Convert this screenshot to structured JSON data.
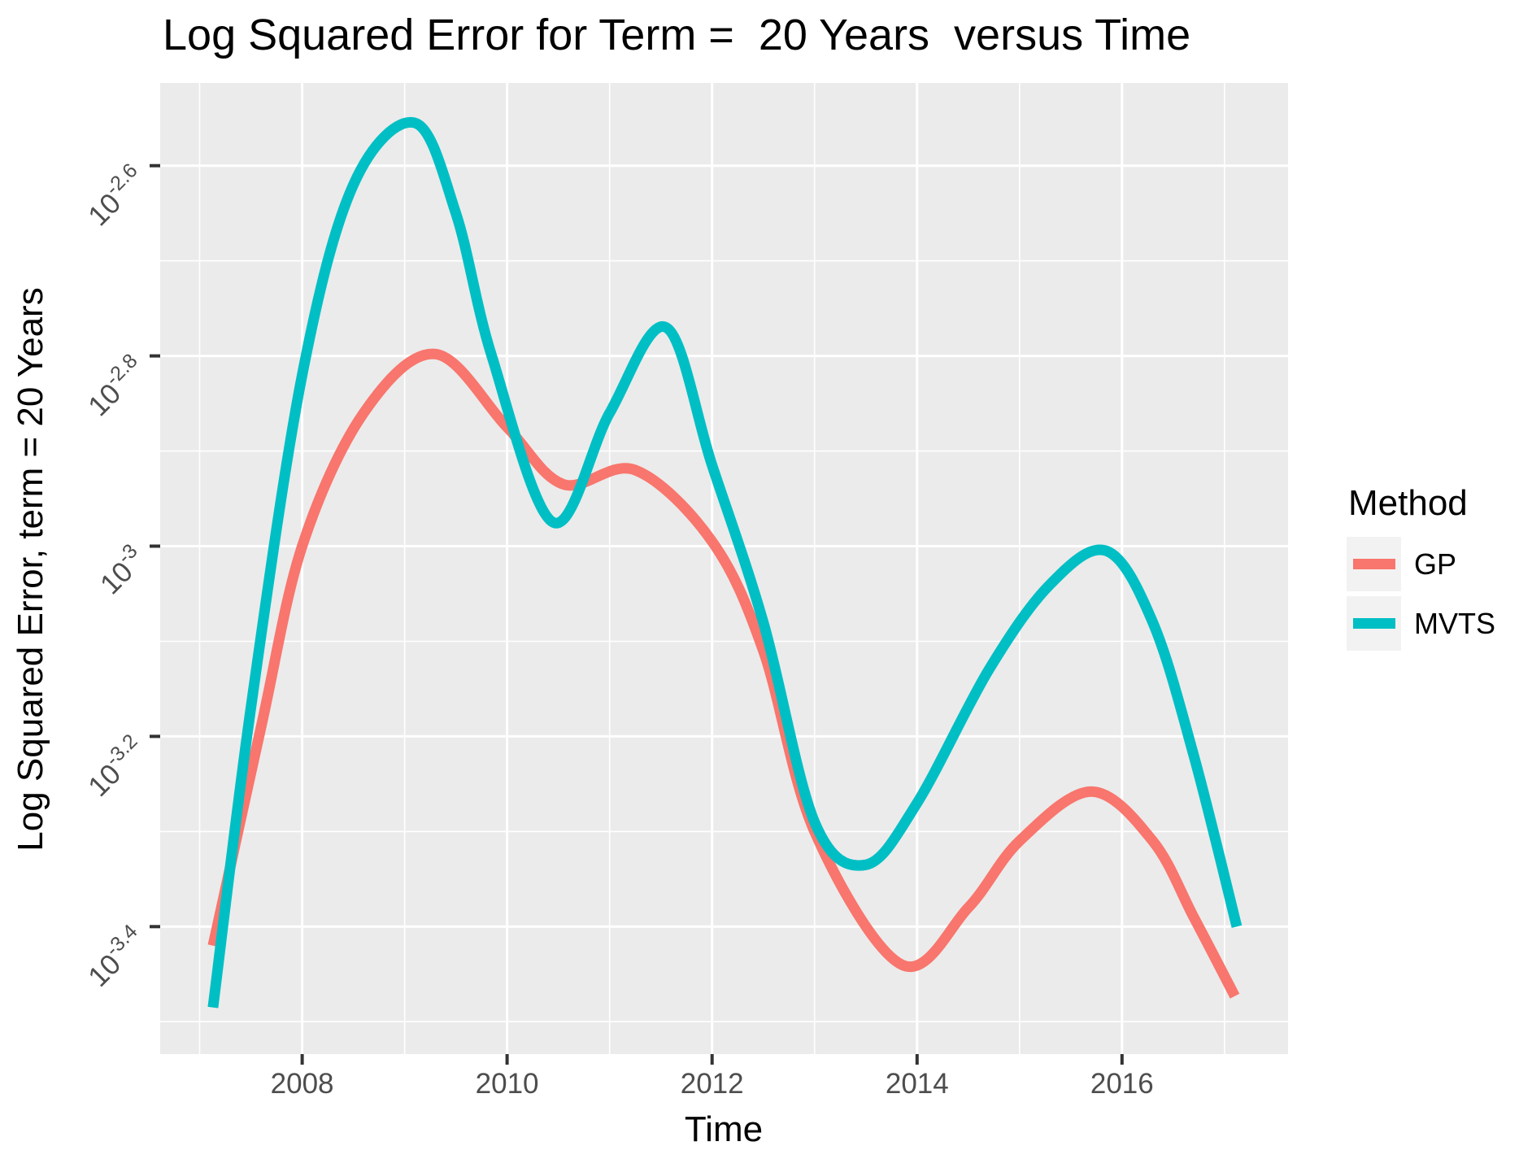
{
  "title": "Log Squared Error for Term =  20 Years  versus Time",
  "colors": {
    "panel_background": "#EBEBEB",
    "grid_line": "#FFFFFF",
    "tick_mark": "#333333",
    "tick_label": "#4D4D4D",
    "text": "#000000",
    "legend_key_background": "#F2F2F2",
    "gp_line": "#F8766D",
    "mvts_line": "#00BFC4"
  },
  "chart_data": {
    "type": "line",
    "title": "Log Squared Error for Term =  20 Years  versus Time",
    "xlabel": "Time",
    "ylabel": "Log Squared Error, term = 20 Years",
    "grid": true,
    "legend_position": "right",
    "x_domain": [
      2006.615,
      2017.62
    ],
    "y_domain_exponent": [
      -3.534,
      -2.513
    ],
    "x_major_ticks": [
      {
        "value": 2008,
        "label": "2008"
      },
      {
        "value": 2010,
        "label": "2010"
      },
      {
        "value": 2012,
        "label": "2012"
      },
      {
        "value": 2014,
        "label": "2014"
      },
      {
        "value": 2016,
        "label": "2016"
      }
    ],
    "x_minor_breaks": [
      2007,
      2009,
      2011,
      2013,
      2015,
      2017
    ],
    "y_major_ticks": [
      {
        "value": -2.6,
        "base": "10",
        "exp": "-2.6"
      },
      {
        "value": -2.8,
        "base": "10",
        "exp": "-2.8"
      },
      {
        "value": -3.0,
        "base": "10",
        "exp": "-3"
      },
      {
        "value": -3.2,
        "base": "10",
        "exp": "-3.2"
      },
      {
        "value": -3.4,
        "base": "10",
        "exp": "-3.4"
      }
    ],
    "y_minor_breaks": [
      -2.7,
      -2.9,
      -3.1,
      -3.3,
      -3.5
    ],
    "y_scale_note": "y values are log10(squared error) exponents; tick labels shown as 10^exp",
    "legend": {
      "title": "Method",
      "entries": [
        {
          "label": "GP",
          "color": "#F8766D"
        },
        {
          "label": "MVTS",
          "color": "#00BFC4"
        }
      ]
    },
    "series": [
      {
        "name": "GP",
        "color": "#F8766D",
        "points": [
          [
            2007.13,
            -3.42
          ],
          [
            2007.6,
            -3.19
          ],
          [
            2008.0,
            -3.0
          ],
          [
            2008.6,
            -2.86
          ],
          [
            2009.3,
            -2.798
          ],
          [
            2010.0,
            -2.875
          ],
          [
            2010.55,
            -2.935
          ],
          [
            2011.25,
            -2.92
          ],
          [
            2012.0,
            -2.995
          ],
          [
            2012.5,
            -3.11
          ],
          [
            2013.0,
            -3.3
          ],
          [
            2013.85,
            -3.44
          ],
          [
            2014.5,
            -3.38
          ],
          [
            2015.0,
            -3.31
          ],
          [
            2015.7,
            -3.258
          ],
          [
            2016.3,
            -3.31
          ],
          [
            2016.7,
            -3.39
          ],
          [
            2017.1,
            -3.473
          ]
        ]
      },
      {
        "name": "MVTS",
        "color": "#00BFC4",
        "points": [
          [
            2007.13,
            -3.485
          ],
          [
            2007.5,
            -3.17
          ],
          [
            2008.0,
            -2.82
          ],
          [
            2008.5,
            -2.62
          ],
          [
            2009.1,
            -2.555
          ],
          [
            2009.5,
            -2.65
          ],
          [
            2009.85,
            -2.8
          ],
          [
            2010.45,
            -2.975
          ],
          [
            2011.0,
            -2.86
          ],
          [
            2011.55,
            -2.77
          ],
          [
            2012.0,
            -2.915
          ],
          [
            2012.5,
            -3.08
          ],
          [
            2013.0,
            -3.29
          ],
          [
            2013.5,
            -3.335
          ],
          [
            2014.0,
            -3.27
          ],
          [
            2014.7,
            -3.13
          ],
          [
            2015.3,
            -3.04
          ],
          [
            2015.85,
            -3.005
          ],
          [
            2016.3,
            -3.08
          ],
          [
            2016.7,
            -3.22
          ],
          [
            2017.12,
            -3.4
          ]
        ]
      }
    ]
  }
}
